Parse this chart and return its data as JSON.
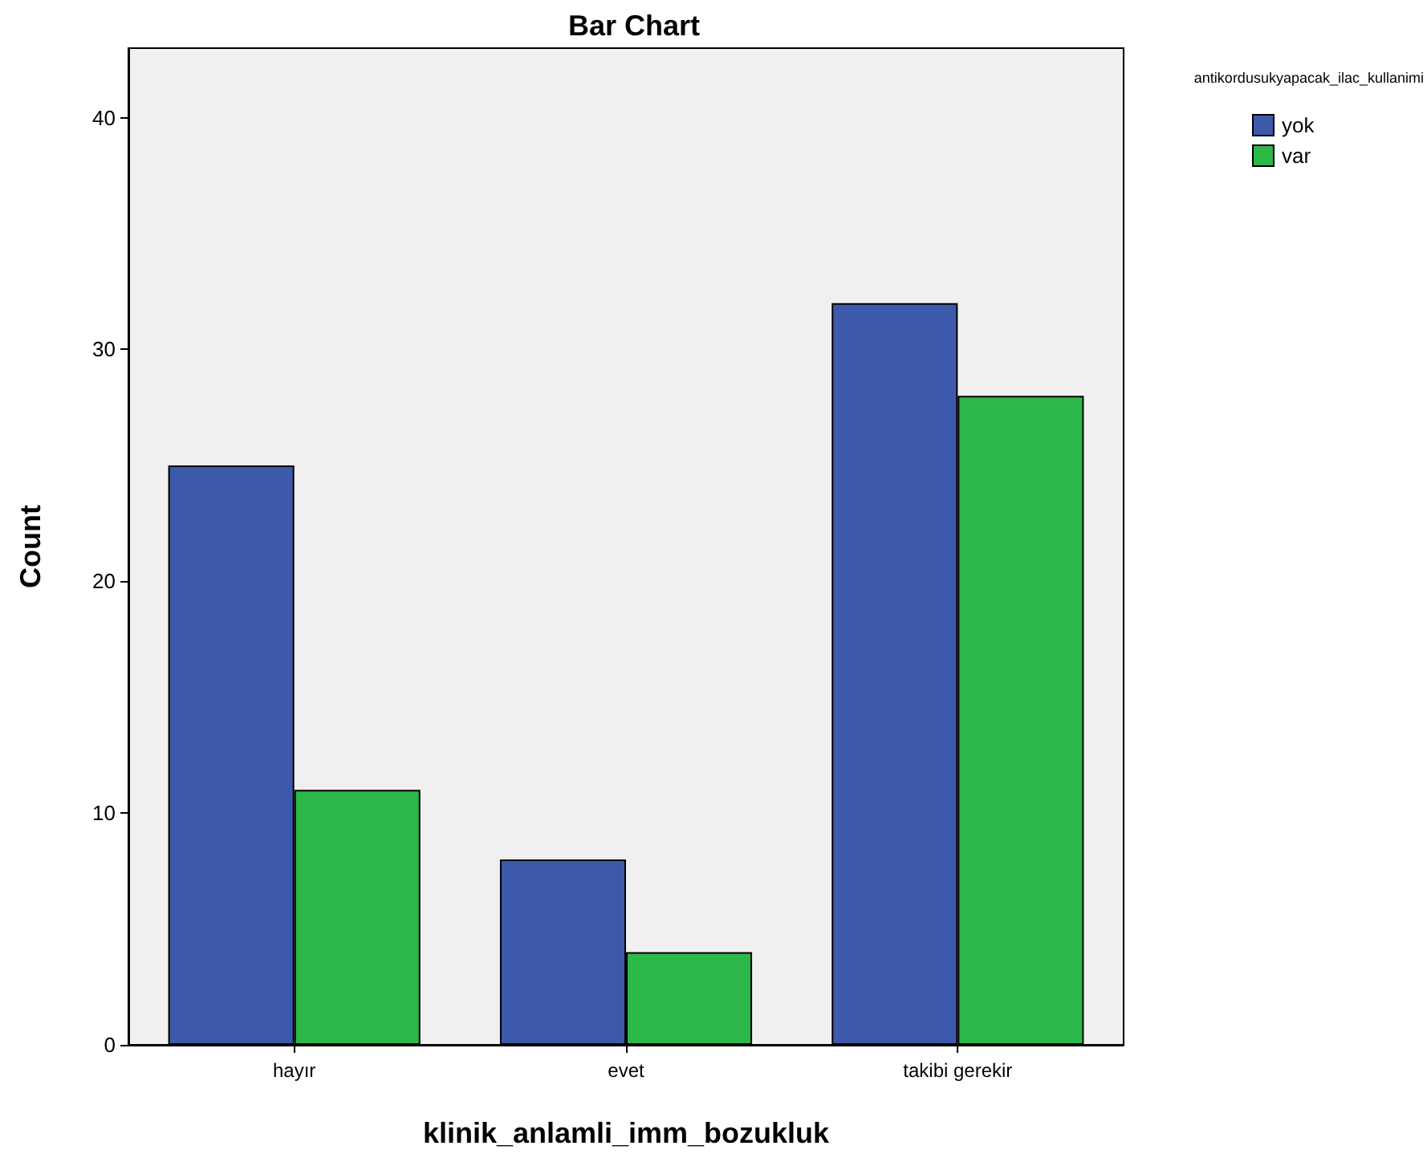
{
  "chart_data": {
    "type": "bar",
    "title": "Bar Chart",
    "xlabel": "klinik_anlamli_imm_bozukluk",
    "ylabel": "Count",
    "legend_title": "antikordusukyapacak_ilac_kullanimi",
    "categories": [
      "hayır",
      "evet",
      "takibi gerekir"
    ],
    "series": [
      {
        "name": "yok",
        "color": "#3d59ab",
        "values": [
          25,
          8,
          32
        ]
      },
      {
        "name": "var",
        "color": "#2db84a",
        "values": [
          11,
          4,
          28
        ]
      }
    ],
    "ylim": [
      0,
      43
    ],
    "yticks": [
      0,
      10,
      20,
      30,
      40
    ],
    "grid": false,
    "legend": "top right"
  }
}
